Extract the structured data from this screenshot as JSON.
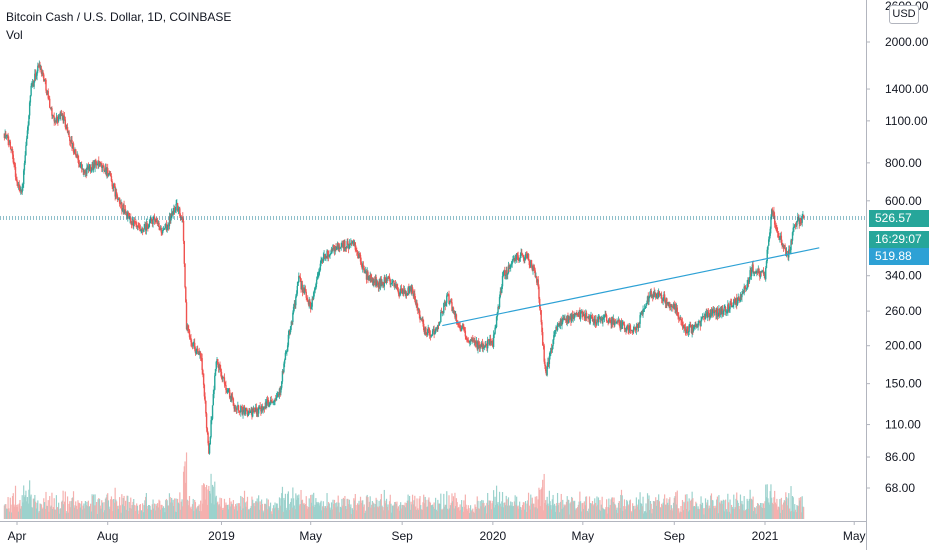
{
  "legend": {
    "symbol": "Bitcoin Cash / U.S. Dollar, 1D, COINBASE",
    "volume_label": "Vol"
  },
  "currency_button": "USD",
  "price_axis": {
    "top_partial": "2600.00",
    "ticks": [
      "2000.00",
      "1400.00",
      "1100.00",
      "800.00",
      "600.00",
      "340.00",
      "260.00",
      "200.00",
      "150.00",
      "110.00",
      "86.00",
      "68.00"
    ]
  },
  "time_axis": {
    "ticks": [
      "Apr",
      "Aug",
      "2019",
      "May",
      "Sep",
      "2020",
      "May",
      "Sep",
      "2021",
      "May"
    ]
  },
  "labels": {
    "last_price": "526.57",
    "countdown": "16:29:07",
    "trendline_price": "519.88"
  },
  "colors": {
    "up": "#26a69a",
    "down": "#ef5350",
    "vol_up": "#9cd2cd",
    "vol_down": "#f5b0ae",
    "last_price": "#26a69a",
    "trendline": "#2da1d5",
    "hline": "#1f7f96"
  },
  "chart_data": {
    "type": "candlestick",
    "scale": "log",
    "ylim": [
      58,
      2700
    ],
    "xrange": [
      "2018-03-15",
      "2021-05-31"
    ],
    "date_ticks": [
      {
        "label": "Apr",
        "date": "2018-04-01"
      },
      {
        "label": "Aug",
        "date": "2018-08-01"
      },
      {
        "label": "2019",
        "date": "2019-01-01"
      },
      {
        "label": "May",
        "date": "2019-05-01"
      },
      {
        "label": "Sep",
        "date": "2019-09-01"
      },
      {
        "label": "2020",
        "date": "2020-01-01"
      },
      {
        "label": "May",
        "date": "2020-05-01"
      },
      {
        "label": "Sep",
        "date": "2020-09-01"
      },
      {
        "label": "2021",
        "date": "2021-01-01"
      },
      {
        "label": "May",
        "date": "2021-05-01"
      }
    ],
    "price_path": [
      [
        "2018-03-15",
        1000
      ],
      [
        "2018-03-25",
        900
      ],
      [
        "2018-04-01",
        680
      ],
      [
        "2018-04-08",
        650
      ],
      [
        "2018-04-20",
        1400
      ],
      [
        "2018-05-01",
        1700
      ],
      [
        "2018-05-08",
        1500
      ],
      [
        "2018-05-20",
        1100
      ],
      [
        "2018-06-01",
        1150
      ],
      [
        "2018-06-15",
        900
      ],
      [
        "2018-06-30",
        740
      ],
      [
        "2018-07-15",
        800
      ],
      [
        "2018-08-01",
        750
      ],
      [
        "2018-08-15",
        600
      ],
      [
        "2018-08-31",
        520
      ],
      [
        "2018-09-15",
        470
      ],
      [
        "2018-10-01",
        520
      ],
      [
        "2018-10-15",
        470
      ],
      [
        "2018-11-01",
        580
      ],
      [
        "2018-11-10",
        520
      ],
      [
        "2018-11-15",
        230
      ],
      [
        "2018-11-25",
        200
      ],
      [
        "2018-12-05",
        180
      ],
      [
        "2018-12-15",
        90
      ],
      [
        "2018-12-25",
        180
      ],
      [
        "2019-01-05",
        150
      ],
      [
        "2019-01-20",
        125
      ],
      [
        "2019-02-10",
        120
      ],
      [
        "2019-03-01",
        128
      ],
      [
        "2019-03-20",
        140
      ],
      [
        "2019-04-01",
        210
      ],
      [
        "2019-04-15",
        330
      ],
      [
        "2019-05-01",
        270
      ],
      [
        "2019-05-15",
        380
      ],
      [
        "2019-06-01",
        420
      ],
      [
        "2019-06-15",
        430
      ],
      [
        "2019-06-28",
        430
      ],
      [
        "2019-07-15",
        340
      ],
      [
        "2019-08-01",
        320
      ],
      [
        "2019-08-15",
        330
      ],
      [
        "2019-09-01",
        295
      ],
      [
        "2019-09-15",
        305
      ],
      [
        "2019-10-01",
        225
      ],
      [
        "2019-10-15",
        220
      ],
      [
        "2019-11-01",
        290
      ],
      [
        "2019-11-15",
        240
      ],
      [
        "2019-12-01",
        205
      ],
      [
        "2019-12-15",
        200
      ],
      [
        "2020-01-01",
        205
      ],
      [
        "2020-01-15",
        340
      ],
      [
        "2020-02-01",
        390
      ],
      [
        "2020-02-15",
        400
      ],
      [
        "2020-03-01",
        330
      ],
      [
        "2020-03-12",
        160
      ],
      [
        "2020-03-25",
        230
      ],
      [
        "2020-04-10",
        245
      ],
      [
        "2020-05-01",
        255
      ],
      [
        "2020-05-15",
        240
      ],
      [
        "2020-06-01",
        245
      ],
      [
        "2020-06-20",
        235
      ],
      [
        "2020-07-10",
        225
      ],
      [
        "2020-08-01",
        300
      ],
      [
        "2020-08-15",
        290
      ],
      [
        "2020-09-01",
        270
      ],
      [
        "2020-09-15",
        225
      ],
      [
        "2020-10-01",
        230
      ],
      [
        "2020-10-15",
        255
      ],
      [
        "2020-11-01",
        260
      ],
      [
        "2020-11-15",
        270
      ],
      [
        "2020-12-01",
        290
      ],
      [
        "2020-12-15",
        360
      ],
      [
        "2021-01-01",
        340
      ],
      [
        "2021-01-10",
        560
      ],
      [
        "2021-01-20",
        460
      ],
      [
        "2021-02-01",
        390
      ],
      [
        "2021-02-10",
        510
      ],
      [
        "2021-02-22",
        526.57
      ]
    ],
    "trendline": {
      "from": [
        "2019-10-25",
        233
      ],
      "to": [
        "2021-03-15",
        420
      ]
    },
    "horizontal_line": 526.57,
    "last_price": 526.57
  }
}
